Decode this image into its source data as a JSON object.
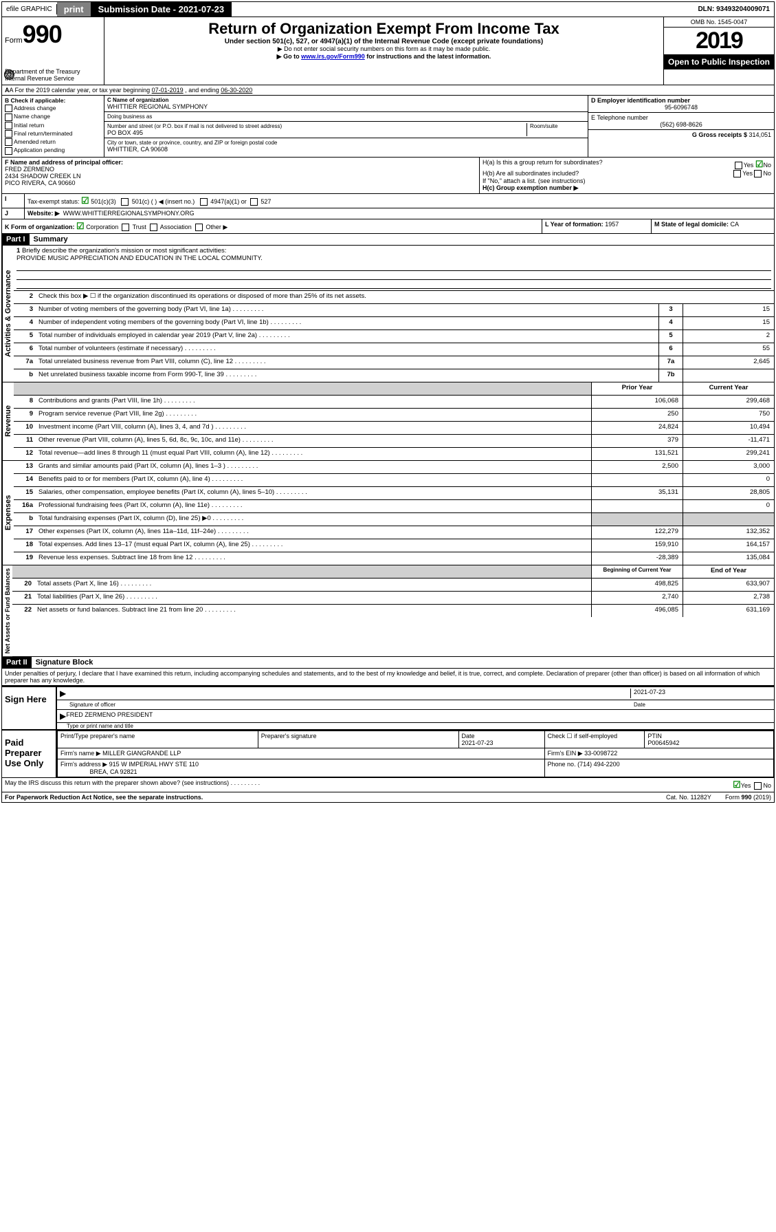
{
  "topbar": {
    "efile": "efile GRAPHIC",
    "print": "print",
    "submission_label": "Submission Date - ",
    "submission_date": "2021-07-23",
    "dln_label": "DLN: ",
    "dln": "93493204009071"
  },
  "header": {
    "form_label": "Form",
    "form_no": "990",
    "dept": "Department of the Treasury",
    "irs": "Internal Revenue Service",
    "title": "Return of Organization Exempt From Income Tax",
    "subtitle": "Under section 501(c), 527, or 4947(a)(1) of the Internal Revenue Code (except private foundations)",
    "instr1": "▶ Do not enter social security numbers on this form as it may be made public.",
    "instr2a": "▶ Go to ",
    "instr2_link": "www.irs.gov/Form990",
    "instr2b": " for instructions and the latest information.",
    "omb": "OMB No. 1545-0047",
    "year": "2019",
    "open": "Open to Public Inspection"
  },
  "sectionA": {
    "text_a": "A For the 2019 calendar year, or tax year beginning ",
    "begin": "07-01-2019",
    "text_b": " , and ending ",
    "end": "06-30-2020"
  },
  "boxB": {
    "label": "B Check if applicable:",
    "opts": [
      "Address change",
      "Name change",
      "Initial return",
      "Final return/terminated",
      "Amended return",
      "Application pending"
    ]
  },
  "boxC": {
    "name_label": "C Name of organization",
    "name": "WHITTIER REGIONAL SYMPHONY",
    "dba_label": "Doing business as",
    "dba": "",
    "addr_label": "Number and street (or P.O. box if mail is not delivered to street address)",
    "addr": "PO BOX 495",
    "room_label": "Room/suite",
    "city_label": "City or town, state or province, country, and ZIP or foreign postal code",
    "city": "WHITTIER, CA  90608"
  },
  "boxD": {
    "label": "D Employer identification number",
    "val": "95-6096748"
  },
  "boxE": {
    "label": "E Telephone number",
    "val": "(562) 698-8626"
  },
  "boxG": {
    "label": "G Gross receipts $ ",
    "val": "314,051"
  },
  "boxF": {
    "label": "F Name and address of principal officer:",
    "name": "FRED ZERMENO",
    "addr1": "2434 SHADOW CREEK LN",
    "addr2": "PICO RIVERA, CA  90660"
  },
  "boxH": {
    "a_label": "H(a)  Is this a group return for subordinates?",
    "b_label": "H(b)  Are all subordinates included?",
    "b_note": "If \"No,\" attach a list. (see instructions)",
    "c_label": "H(c)  Group exemption number ▶",
    "yes": "Yes",
    "no": "No"
  },
  "boxI": {
    "label": "Tax-exempt status:",
    "o1": "501(c)(3)",
    "o2": "501(c) (   ) ◀ (insert no.)",
    "o3": "4947(a)(1) or",
    "o4": "527"
  },
  "boxJ": {
    "label": "Website: ▶",
    "val": "WWW.WHITTIERREGIONALSYMPHONY.ORG"
  },
  "boxK": {
    "label": "K Form of organization:",
    "o1": "Corporation",
    "o2": "Trust",
    "o3": "Association",
    "o4": "Other ▶"
  },
  "boxL": {
    "label": "L Year of formation: ",
    "val": "1957"
  },
  "boxM": {
    "label": "M State of legal domicile: ",
    "val": "CA"
  },
  "part1": {
    "header": "Part I",
    "title": "Summary",
    "vert_gov": "Activities & Governance",
    "vert_rev": "Revenue",
    "vert_exp": "Expenses",
    "vert_net": "Net Assets or Fund Balances",
    "l1_label": "Briefly describe the organization's mission or most significant activities:",
    "l1_val": "PROVIDE MUSIC APPRECIATION AND EDUCATION IN THE LOCAL COMMUNITY.",
    "l2": "Check this box ▶ ☐  if the organization discontinued its operations or disposed of more than 25% of its net assets.",
    "lines_gov": [
      {
        "n": "3",
        "t": "Number of voting members of the governing body (Part VI, line 1a)",
        "box": "3",
        "v": "15"
      },
      {
        "n": "4",
        "t": "Number of independent voting members of the governing body (Part VI, line 1b)",
        "box": "4",
        "v": "15"
      },
      {
        "n": "5",
        "t": "Total number of individuals employed in calendar year 2019 (Part V, line 2a)",
        "box": "5",
        "v": "2"
      },
      {
        "n": "6",
        "t": "Total number of volunteers (estimate if necessary)",
        "box": "6",
        "v": "55"
      },
      {
        "n": "7a",
        "t": "Total unrelated business revenue from Part VIII, column (C), line 12",
        "box": "7a",
        "v": "2,645"
      },
      {
        "n": "b",
        "t": "Net unrelated business taxable income from Form 990-T, line 39",
        "box": "7b",
        "v": ""
      }
    ],
    "col_prior": "Prior Year",
    "col_current": "Current Year",
    "col_bcy": "Beginning of Current Year",
    "col_eoy": "End of Year",
    "lines_rev": [
      {
        "n": "8",
        "t": "Contributions and grants (Part VIII, line 1h)",
        "p": "106,068",
        "c": "299,468"
      },
      {
        "n": "9",
        "t": "Program service revenue (Part VIII, line 2g)",
        "p": "250",
        "c": "750"
      },
      {
        "n": "10",
        "t": "Investment income (Part VIII, column (A), lines 3, 4, and 7d )",
        "p": "24,824",
        "c": "10,494"
      },
      {
        "n": "11",
        "t": "Other revenue (Part VIII, column (A), lines 5, 6d, 8c, 9c, 10c, and 11e)",
        "p": "379",
        "c": "-11,471"
      },
      {
        "n": "12",
        "t": "Total revenue—add lines 8 through 11 (must equal Part VIII, column (A), line 12)",
        "p": "131,521",
        "c": "299,241"
      }
    ],
    "lines_exp": [
      {
        "n": "13",
        "t": "Grants and similar amounts paid (Part IX, column (A), lines 1–3 )",
        "p": "2,500",
        "c": "3,000"
      },
      {
        "n": "14",
        "t": "Benefits paid to or for members (Part IX, column (A), line 4)",
        "p": "",
        "c": "0"
      },
      {
        "n": "15",
        "t": "Salaries, other compensation, employee benefits (Part IX, column (A), lines 5–10)",
        "p": "35,131",
        "c": "28,805"
      },
      {
        "n": "16a",
        "t": "Professional fundraising fees (Part IX, column (A), line 11e)",
        "p": "",
        "c": "0"
      },
      {
        "n": "b",
        "t": "Total fundraising expenses (Part IX, column (D), line 25) ▶0",
        "p": "shaded",
        "c": "shaded"
      },
      {
        "n": "17",
        "t": "Other expenses (Part IX, column (A), lines 11a–11d, 11f–24e)",
        "p": "122,279",
        "c": "132,352"
      },
      {
        "n": "18",
        "t": "Total expenses. Add lines 13–17 (must equal Part IX, column (A), line 25)",
        "p": "159,910",
        "c": "164,157"
      },
      {
        "n": "19",
        "t": "Revenue less expenses. Subtract line 18 from line 12",
        "p": "-28,389",
        "c": "135,084"
      }
    ],
    "lines_net": [
      {
        "n": "20",
        "t": "Total assets (Part X, line 16)",
        "p": "498,825",
        "c": "633,907"
      },
      {
        "n": "21",
        "t": "Total liabilities (Part X, line 26)",
        "p": "2,740",
        "c": "2,738"
      },
      {
        "n": "22",
        "t": "Net assets or fund balances. Subtract line 21 from line 20",
        "p": "496,085",
        "c": "631,169"
      }
    ]
  },
  "part2": {
    "header": "Part II",
    "title": "Signature Block",
    "perjury": "Under penalties of perjury, I declare that I have examined this return, including accompanying schedules and statements, and to the best of my knowledge and belief, it is true, correct, and complete. Declaration of preparer (other than officer) is based on all information of which preparer has any knowledge.",
    "sign_here": "Sign Here",
    "sig_officer": "Signature of officer",
    "sig_date": "2021-07-23",
    "date_label": "Date",
    "officer_name": "FRED ZERMENO  PRESIDENT",
    "type_name": "Type or print name and title",
    "paid": "Paid Preparer Use Only",
    "prep_name_label": "Print/Type preparer's name",
    "prep_sig_label": "Preparer's signature",
    "prep_date_label": "Date",
    "prep_date": "2021-07-23",
    "check_self": "Check ☐ if self-employed",
    "ptin_label": "PTIN",
    "ptin": "P00645942",
    "firm_name_label": "Firm's name    ▶",
    "firm_name": "MILLER GIANGRANDE LLP",
    "firm_ein_label": "Firm's EIN ▶ ",
    "firm_ein": "33-0098722",
    "firm_addr_label": "Firm's address ▶",
    "firm_addr": "915 W IMPERIAL HWY STE 110",
    "firm_city": "BREA, CA  92821",
    "phone_label": "Phone no. ",
    "phone": "(714) 494-2200",
    "discuss": "May the IRS discuss this return with the preparer shown above? (see instructions)"
  },
  "footer": {
    "paperwork": "For Paperwork Reduction Act Notice, see the separate instructions.",
    "cat": "Cat. No. 11282Y",
    "form": "Form 990 (2019)"
  }
}
